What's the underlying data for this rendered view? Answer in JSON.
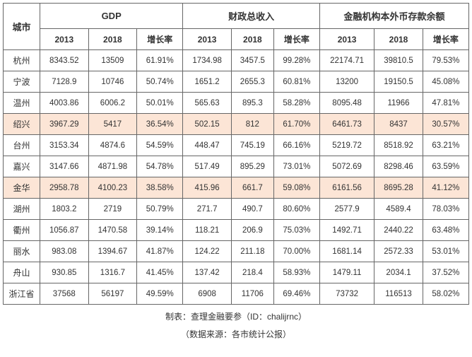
{
  "headers": {
    "city": "城市",
    "group1": "GDP",
    "group2": "财政总收入",
    "group3": "金融机构本外币存款余额",
    "y2013": "2013",
    "y2018": "2018",
    "growth": "增长率"
  },
  "highlight_rows": [
    3,
    6
  ],
  "highlight_bg": "#fce5d6",
  "rows": [
    {
      "city": "杭州",
      "g1_2013": "8343.52",
      "g1_2018": "13509",
      "g1_g": "61.91%",
      "g2_2013": "1734.98",
      "g2_2018": "3457.5",
      "g2_g": "99.28%",
      "g3_2013": "22174.71",
      "g3_2018": "39810.5",
      "g3_g": "79.53%"
    },
    {
      "city": "宁波",
      "g1_2013": "7128.9",
      "g1_2018": "10746",
      "g1_g": "50.74%",
      "g2_2013": "1651.2",
      "g2_2018": "2655.3",
      "g2_g": "60.81%",
      "g3_2013": "13200",
      "g3_2018": "19150.5",
      "g3_g": "45.08%"
    },
    {
      "city": "温州",
      "g1_2013": "4003.86",
      "g1_2018": "6006.2",
      "g1_g": "50.01%",
      "g2_2013": "565.63",
      "g2_2018": "895.3",
      "g2_g": "58.28%",
      "g3_2013": "8095.48",
      "g3_2018": "11966",
      "g3_g": "47.81%"
    },
    {
      "city": "绍兴",
      "g1_2013": "3967.29",
      "g1_2018": "5417",
      "g1_g": "36.54%",
      "g2_2013": "502.15",
      "g2_2018": "812",
      "g2_g": "61.70%",
      "g3_2013": "6461.73",
      "g3_2018": "8437",
      "g3_g": "30.57%"
    },
    {
      "city": "台州",
      "g1_2013": "3153.34",
      "g1_2018": "4874.6",
      "g1_g": "54.59%",
      "g2_2013": "448.47",
      "g2_2018": "745.19",
      "g2_g": "66.16%",
      "g3_2013": "5219.72",
      "g3_2018": "8518.92",
      "g3_g": "63.21%"
    },
    {
      "city": "嘉兴",
      "g1_2013": "3147.66",
      "g1_2018": "4871.98",
      "g1_g": "54.78%",
      "g2_2013": "517.49",
      "g2_2018": "895.29",
      "g2_g": "73.01%",
      "g3_2013": "5072.69",
      "g3_2018": "8298.46",
      "g3_g": "63.59%"
    },
    {
      "city": "金华",
      "g1_2013": "2958.78",
      "g1_2018": "4100.23",
      "g1_g": "38.58%",
      "g2_2013": "415.96",
      "g2_2018": "661.7",
      "g2_g": "59.08%",
      "g3_2013": "6161.56",
      "g3_2018": "8695.28",
      "g3_g": "41.12%"
    },
    {
      "city": "湖州",
      "g1_2013": "1803.2",
      "g1_2018": "2719",
      "g1_g": "50.79%",
      "g2_2013": "271.7",
      "g2_2018": "490.7",
      "g2_g": "80.60%",
      "g3_2013": "2577.9",
      "g3_2018": "4589.4",
      "g3_g": "78.03%"
    },
    {
      "city": "衢州",
      "g1_2013": "1056.87",
      "g1_2018": "1470.58",
      "g1_g": "39.14%",
      "g2_2013": "118.21",
      "g2_2018": "206.9",
      "g2_g": "75.03%",
      "g3_2013": "1492.71",
      "g3_2018": "2440.22",
      "g3_g": "63.48%"
    },
    {
      "city": "丽水",
      "g1_2013": "983.08",
      "g1_2018": "1394.67",
      "g1_g": "41.87%",
      "g2_2013": "124.22",
      "g2_2018": "211.18",
      "g2_g": "70.00%",
      "g3_2013": "1681.14",
      "g3_2018": "2572.33",
      "g3_g": "53.01%"
    },
    {
      "city": "舟山",
      "g1_2013": "930.85",
      "g1_2018": "1316.7",
      "g1_g": "41.45%",
      "g2_2013": "137.42",
      "g2_2018": "218.4",
      "g2_g": "58.93%",
      "g3_2013": "1479.11",
      "g3_2018": "2034.1",
      "g3_g": "37.52%"
    },
    {
      "city": "浙江省",
      "g1_2013": "37568",
      "g1_2018": "56197",
      "g1_g": "49.59%",
      "g2_2013": "6908",
      "g2_2018": "11706",
      "g2_g": "69.46%",
      "g3_2013": "73732",
      "g3_2018": "116513",
      "g3_g": "58.02%"
    }
  ],
  "footer1": "制表：查理金融要参（ID：chalijrnc）",
  "footer2": "（数据来源：各市统计公报）"
}
